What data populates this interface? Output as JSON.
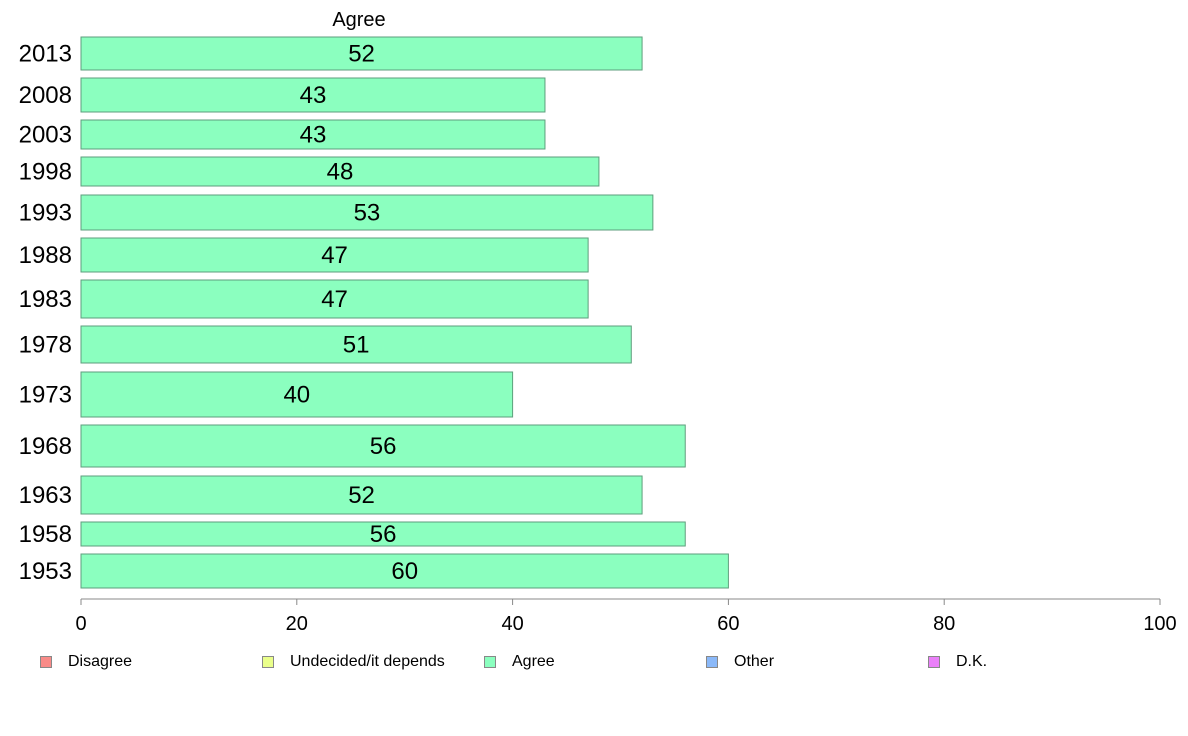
{
  "chart_data": {
    "type": "bar",
    "orientation": "horizontal",
    "series_header": "Agree",
    "categories": [
      "2013",
      "2008",
      "2003",
      "1998",
      "1993",
      "1988",
      "1983",
      "1978",
      "1973",
      "1968",
      "1963",
      "1958",
      "1953"
    ],
    "series": [
      {
        "name": "Agree",
        "color": "#8bffbf",
        "values": [
          52,
          43,
          43,
          48,
          53,
          47,
          47,
          51,
          40,
          56,
          52,
          56,
          60
        ],
        "labels": [
          "52",
          "43",
          "43",
          "48",
          "53",
          "47",
          "47",
          "51",
          "40",
          "56",
          "52",
          "56",
          "60"
        ]
      }
    ],
    "xlim": [
      0,
      100
    ],
    "xticks": [
      0,
      20,
      40,
      60,
      80,
      100
    ],
    "xtick_labels": [
      "0",
      "20",
      "40",
      "60",
      "80",
      "100"
    ],
    "grid": false,
    "legend_position": "bottom",
    "legend": [
      {
        "label": "Disagree",
        "color": "#f98b88"
      },
      {
        "label": "Undecided/it depends",
        "color": "#eaff8b"
      },
      {
        "label": "Agree",
        "color": "#8bffbf"
      },
      {
        "label": "Other",
        "color": "#8bb9f9"
      },
      {
        "label": "D.K.",
        "color": "#ea80f9"
      }
    ]
  }
}
